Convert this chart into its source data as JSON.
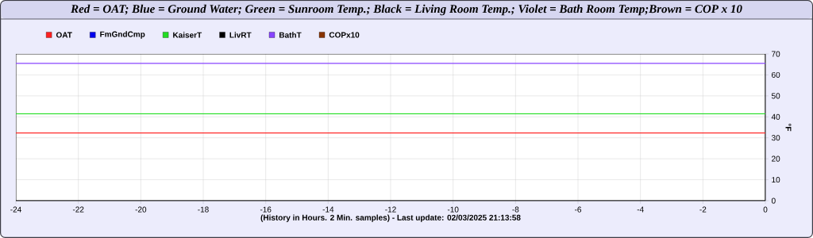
{
  "chart_data": {
    "type": "line",
    "title": "Red = OAT; Blue = Ground Water; Green = Sunroom Temp.; Black = Living Room Temp.; Violet = Bath Room Temp;Brown = COP x 10",
    "xlabel": "(History in Hours. 2 Min. samples) - Last update: 02/03/2025 21:13:58",
    "ylabel": "°F",
    "x": [
      -24,
      0
    ],
    "series": [
      {
        "name": "OAT",
        "color": "#ff2020",
        "values": [
          32.3,
          32.3
        ]
      },
      {
        "name": "FmGndCmp",
        "color": "#0000ee",
        "values": [
          null,
          null
        ]
      },
      {
        "name": "KaiserT",
        "color": "#22dd22",
        "values": [
          41.5,
          41.5
        ]
      },
      {
        "name": "LivRT",
        "color": "#000000",
        "values": [
          null,
          null
        ]
      },
      {
        "name": "BathT",
        "color": "#8844ff",
        "values": [
          65.5,
          65.5
        ]
      },
      {
        "name": "COPx10",
        "color": "#883300",
        "values": [
          null,
          null
        ]
      }
    ],
    "xlim": [
      -24,
      0
    ],
    "ylim": [
      0,
      70
    ],
    "xticks": [
      -24,
      -22,
      -20,
      -18,
      -16,
      -14,
      -12,
      -10,
      -8,
      -6,
      -4,
      -2,
      0
    ],
    "yticks": [
      0,
      10,
      20,
      30,
      40,
      50,
      60,
      70
    ],
    "grid": true,
    "legend": "top left",
    "marker": "none",
    "line_style": "solid"
  }
}
